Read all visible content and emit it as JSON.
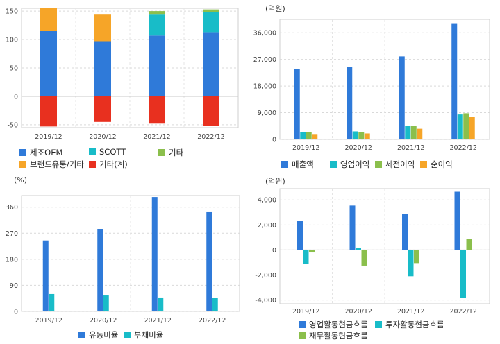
{
  "chart_data": [
    {
      "id": "revenue-mix",
      "type": "bar",
      "stacked": true,
      "title": "",
      "unit": "",
      "categories": [
        "2019/12",
        "2020/12",
        "2021/12",
        "2022/12"
      ],
      "series": [
        {
          "name": "제조OEM",
          "color": "#2f7ad9",
          "values": [
            115,
            97,
            107,
            113
          ]
        },
        {
          "name": "SCOTT",
          "color": "#18bcc8",
          "values": [
            0,
            0,
            38,
            35
          ]
        },
        {
          "name": "기타",
          "color": "#8bbf4c",
          "values": [
            0,
            0,
            5,
            5
          ]
        },
        {
          "name": "브랜드유통/기타",
          "color": "#f6a528",
          "values": [
            40,
            48,
            0,
            0
          ]
        },
        {
          "name": "기타(계)",
          "color": "#e8301f",
          "values": [
            -53,
            -45,
            -48,
            -52
          ]
        }
      ],
      "ylim": [
        -55,
        155
      ],
      "yticks": [
        -50,
        0,
        50,
        100,
        150
      ],
      "ytick_labels": [
        "-50",
        "0",
        "50",
        "100",
        "150"
      ]
    },
    {
      "id": "profit",
      "type": "bar",
      "unit": "(억원)",
      "categories": [
        "2019/12",
        "2020/12",
        "2021/12",
        "2022/12"
      ],
      "series": [
        {
          "name": "매출액",
          "color": "#2f7ad9",
          "values": [
            23800,
            24500,
            28000,
            39200
          ]
        },
        {
          "name": "영업이익",
          "color": "#18bcc8",
          "values": [
            2500,
            2700,
            4500,
            8400
          ]
        },
        {
          "name": "세전이익",
          "color": "#8bbf4c",
          "values": [
            2500,
            2500,
            4600,
            8800
          ]
        },
        {
          "name": "순이익",
          "color": "#f6a528",
          "values": [
            1800,
            2000,
            3600,
            7600
          ]
        }
      ],
      "ylim": [
        0,
        40500
      ],
      "yticks": [
        0,
        9000,
        18000,
        27000,
        36000
      ],
      "ytick_labels": [
        "0",
        "9,000",
        "18,000",
        "27,000",
        "36,000"
      ]
    },
    {
      "id": "ratios",
      "type": "bar",
      "unit": "(%)",
      "categories": [
        "2019/12",
        "2020/12",
        "2021/12",
        "2022/12"
      ],
      "series": [
        {
          "name": "유동비율",
          "color": "#2f7ad9",
          "values": [
            245,
            285,
            395,
            345
          ]
        },
        {
          "name": "부채비율",
          "color": "#18bcc8",
          "values": [
            60,
            55,
            48,
            47
          ]
        }
      ],
      "ylim": [
        0,
        400
      ],
      "yticks": [
        0,
        90,
        180,
        270,
        360
      ],
      "ytick_labels": [
        "0",
        "90",
        "180",
        "270",
        "360"
      ]
    },
    {
      "id": "cashflow",
      "type": "bar",
      "unit": "(억원)",
      "categories": [
        "2019/12",
        "2020/12",
        "2021/12",
        "2022/12"
      ],
      "series": [
        {
          "name": "영업활동현금흐름",
          "color": "#2f7ad9",
          "values": [
            2350,
            3550,
            2900,
            4650
          ]
        },
        {
          "name": "투자활동현금흐름",
          "color": "#18bcc8",
          "values": [
            -1100,
            150,
            -2100,
            -3850
          ]
        },
        {
          "name": "재무활동현금흐름",
          "color": "#8bbf4c",
          "values": [
            -200,
            -1250,
            -1050,
            900
          ]
        }
      ],
      "ylim": [
        -4300,
        4900
      ],
      "yticks": [
        -4000,
        -2000,
        0,
        2000,
        4000
      ],
      "ytick_labels": [
        "-4,000",
        "-2,000",
        "0",
        "2,000",
        "4,000"
      ]
    }
  ]
}
